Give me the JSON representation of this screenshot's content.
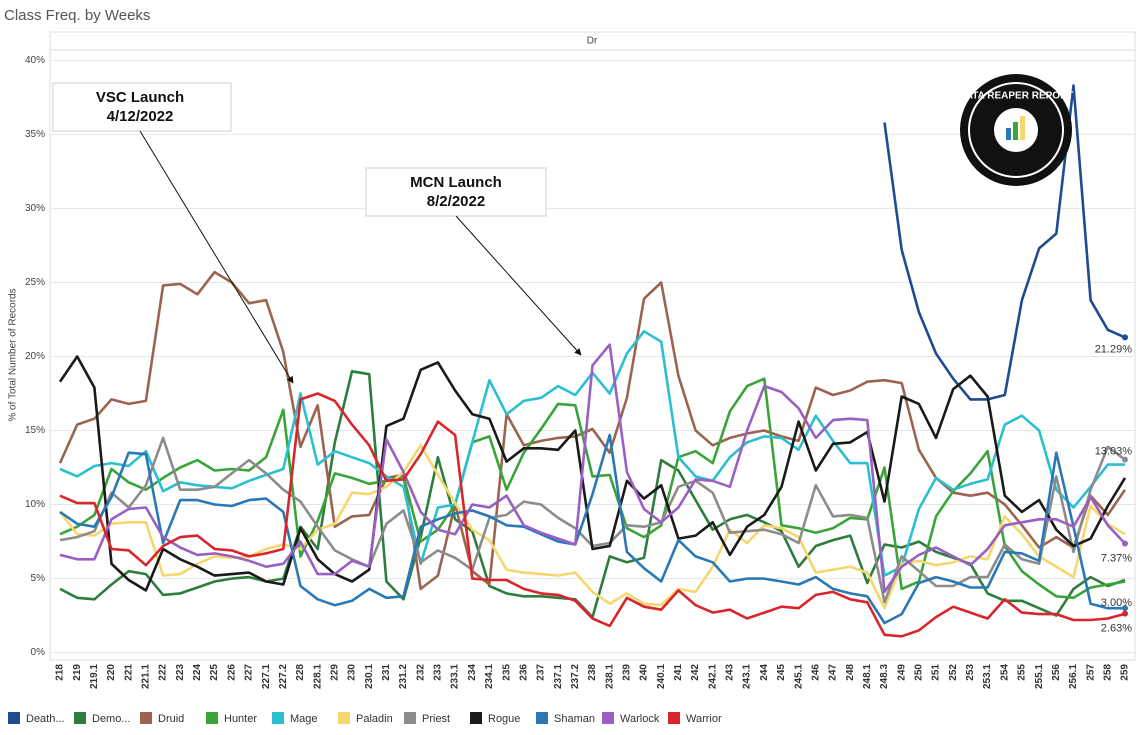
{
  "chart_data": {
    "type": "line",
    "title": "Class Freq. by Weeks",
    "panel": "Dr",
    "y_label": "% of Total Number of Records",
    "logo": "DATA REAPER REPORT",
    "annotations": [
      {
        "label": "VSC Launch",
        "date": "4/12/2022"
      },
      {
        "label": "MCN Launch",
        "date": "8/2/2022"
      }
    ],
    "grid": true,
    "ylim": [
      -0.5,
      40.7
    ],
    "yticks": [
      {
        "value": 0,
        "label": "0%"
      },
      {
        "value": 5,
        "label": "5%"
      },
      {
        "value": 10,
        "label": "10%"
      },
      {
        "value": 15,
        "label": "15%"
      },
      {
        "value": 20,
        "label": "20%"
      },
      {
        "value": 25,
        "label": "25%"
      },
      {
        "value": 30,
        "label": "30%"
      },
      {
        "value": 35,
        "label": "35%"
      },
      {
        "value": 40,
        "label": "40%"
      }
    ],
    "categories": [
      "218",
      "219",
      "219.1",
      "220",
      "221",
      "221.1",
      "222",
      "223",
      "224",
      "225",
      "226",
      "227",
      "227.1",
      "227.2",
      "228",
      "228.1",
      "229",
      "230",
      "230.1",
      "231",
      "231.2",
      "232",
      "233",
      "233.1",
      "234",
      "234.1",
      "235",
      "236",
      "237",
      "237.1",
      "237.2",
      "238",
      "238.1",
      "239",
      "240",
      "240.1",
      "241",
      "242",
      "242.1",
      "243",
      "243.1",
      "244",
      "245",
      "245.1",
      "246",
      "247",
      "248",
      "248.1",
      "248.3",
      "249",
      "250",
      "251",
      "252",
      "253",
      "253.1",
      "254",
      "255",
      "255.1",
      "256",
      "256.1",
      "257",
      "258",
      "259"
    ],
    "series": [
      {
        "name": "Death...",
        "color": "#1f4b91",
        "values": [
          null,
          null,
          null,
          null,
          null,
          null,
          null,
          null,
          null,
          null,
          null,
          null,
          null,
          null,
          null,
          null,
          null,
          null,
          null,
          null,
          null,
          null,
          null,
          null,
          null,
          null,
          null,
          null,
          null,
          null,
          null,
          null,
          null,
          null,
          null,
          null,
          null,
          null,
          null,
          null,
          null,
          null,
          null,
          null,
          null,
          null,
          null,
          null,
          35.8,
          27.2,
          23,
          20.2,
          18.5,
          17.1,
          17.1,
          17.4,
          23.8,
          27.3,
          28.3,
          38.3,
          23.8,
          21.8,
          21.29
        ],
        "value_labels": [
          null,
          null,
          null,
          null,
          null,
          null,
          null,
          null,
          null,
          null,
          null,
          null,
          null,
          null,
          null,
          null,
          null,
          null,
          null,
          null,
          null,
          null,
          null,
          null,
          null,
          null,
          null,
          null,
          null,
          null,
          null,
          null,
          null,
          null,
          null,
          null,
          null,
          null,
          null,
          null,
          null,
          null,
          null,
          null,
          null,
          null,
          null,
          null,
          null,
          null,
          null,
          null,
          null,
          null,
          null,
          null,
          null,
          null,
          null,
          null,
          null,
          null,
          "21.29%"
        ]
      },
      {
        "name": "Demo...",
        "color": "#2e7d3e",
        "values": [
          4.3,
          3.7,
          3.6,
          4.6,
          5.5,
          5.3,
          3.9,
          4.0,
          4.4,
          4.8,
          5.0,
          5.1,
          4.8,
          5.0,
          8.5,
          7.0,
          14.2,
          19.0,
          18.8,
          4.8,
          3.6,
          7.8,
          13.2,
          9.0,
          8.2,
          4.5,
          4.0,
          3.8,
          3.8,
          3.7,
          3.6,
          2.4,
          6.5,
          6.1,
          6.4,
          13.0,
          12.3,
          10.3,
          8.3,
          9.0,
          9.3,
          8.8,
          8.2,
          5.8,
          7.2,
          7.6,
          7.9,
          4.7,
          7.3,
          7.1,
          7.5,
          6.8,
          6.4,
          6.0,
          4.0,
          3.5,
          3.5,
          3.0,
          2.5,
          4.3,
          5.1,
          4.5,
          4.9
        ]
      },
      {
        "name": "Druid",
        "color": "#9c6450",
        "values": [
          12.8,
          15.4,
          15.8,
          17.1,
          16.8,
          17.0,
          24.8,
          24.9,
          24.2,
          25.7,
          25.0,
          23.6,
          23.8,
          20.3,
          13.9,
          16.7,
          8.5,
          9.2,
          9.3,
          11.8,
          12.0,
          4.3,
          5.2,
          10.0,
          5.5,
          4.6,
          16.1,
          14.0,
          14.3,
          14.5,
          14.6,
          15.1,
          13.5,
          17.2,
          23.9,
          25.0,
          18.7,
          15.0,
          14.0,
          14.5,
          14.8,
          15.0,
          14.6,
          14.3,
          17.9,
          17.4,
          17.7,
          18.3,
          18.4,
          18.2,
          13.7,
          11.8,
          10.8,
          10.6,
          10.8,
          10.0,
          8.6,
          7.1,
          7.8,
          7.1,
          10.6,
          9.3,
          11.0
        ]
      },
      {
        "name": "Hunter",
        "color": "#3aa33a",
        "values": [
          8.0,
          8.5,
          9.3,
          12.4,
          11.5,
          11.0,
          11.8,
          12.5,
          13.0,
          12.3,
          12.4,
          12.3,
          13.2,
          16.4,
          6.5,
          8.9,
          12.1,
          11.8,
          11.4,
          11.6,
          11.9,
          7.5,
          8.3,
          10.0,
          14.2,
          14.6,
          11.0,
          13.5,
          15.1,
          16.8,
          16.7,
          11.9,
          12.0,
          8.4,
          7.8,
          8.6,
          13.2,
          13.6,
          12.8,
          16.3,
          18.0,
          18.5,
          8.6,
          8.4,
          8.1,
          8.4,
          9.1,
          9.0,
          12.5,
          4.3,
          4.8,
          9.2,
          10.9,
          12.1,
          13.6,
          7.2,
          5.5,
          4.6,
          3.8,
          3.7,
          4.4,
          4.6,
          4.8
        ]
      },
      {
        "name": "Mage",
        "color": "#2bbfcf",
        "values": [
          12.4,
          11.9,
          12.6,
          12.8,
          12.6,
          13.6,
          10.9,
          11.5,
          11.3,
          11.2,
          11.1,
          11.6,
          12.0,
          12.4,
          17.5,
          12.7,
          13.6,
          13.2,
          12.8,
          11.9,
          11.2,
          6.0,
          9.8,
          10.0,
          14.2,
          18.4,
          16.1,
          17.0,
          17.2,
          18.0,
          17.4,
          18.9,
          17.5,
          20.2,
          21.7,
          21.0,
          13.2,
          11.9,
          11.6,
          13.2,
          14.2,
          14.6,
          14.5,
          13.7,
          16.0,
          14.3,
          12.8,
          12.8,
          5.2,
          5.8,
          9.7,
          11.8,
          11.0,
          11.4,
          11.7,
          15.4,
          16.0,
          15.0,
          11.0,
          9.8,
          11.2,
          12.7,
          12.7
        ]
      },
      {
        "name": "Paladin",
        "color": "#f5d76e",
        "values": [
          9.5,
          8.0,
          7.9,
          8.7,
          8.8,
          8.8,
          5.2,
          5.3,
          6.0,
          6.5,
          6.4,
          6.5,
          7.0,
          7.3,
          7.0,
          8.3,
          8.7,
          10.8,
          10.7,
          11.2,
          12.2,
          14.0,
          12.0,
          10.1,
          8.3,
          7.6,
          5.6,
          5.4,
          5.3,
          5.2,
          5.4,
          4.1,
          3.3,
          4.0,
          3.3,
          3.2,
          4.3,
          4.1,
          5.8,
          8.3,
          7.4,
          8.6,
          8.4,
          7.8,
          5.4,
          5.6,
          5.8,
          5.4,
          3.0,
          6.0,
          6.2,
          5.9,
          6.1,
          6.5,
          6.3,
          9.2,
          8.0,
          6.5,
          5.8,
          5.1,
          9.9,
          8.7,
          8.0
        ]
      },
      {
        "name": "Priest",
        "color": "#8c8c8c",
        "values": [
          7.6,
          7.8,
          8.2,
          10.8,
          9.8,
          11.3,
          14.5,
          11.0,
          11.0,
          11.2,
          12.1,
          13.0,
          12.1,
          11.0,
          10.2,
          8.5,
          6.9,
          6.3,
          5.8,
          8.7,
          9.6,
          6.1,
          6.9,
          6.4,
          5.6,
          9.1,
          9.3,
          10.2,
          10.0,
          9.1,
          8.4,
          7.2,
          7.4,
          8.6,
          8.5,
          8.8,
          11.2,
          11.6,
          10.8,
          8.1,
          8.2,
          8.3,
          8.0,
          7.4,
          11.3,
          9.2,
          9.3,
          9.1,
          3.4,
          6.5,
          5.5,
          4.5,
          4.5,
          5.1,
          5.1,
          7.3,
          6.3,
          6.0,
          11.9,
          6.8,
          11.0,
          13.9,
          13.03
        ],
        "value_labels": [
          null,
          null,
          null,
          null,
          null,
          null,
          null,
          null,
          null,
          null,
          null,
          null,
          null,
          null,
          null,
          null,
          null,
          null,
          null,
          null,
          null,
          null,
          null,
          null,
          null,
          null,
          null,
          null,
          null,
          null,
          null,
          null,
          null,
          null,
          null,
          null,
          null,
          null,
          null,
          null,
          null,
          null,
          null,
          null,
          null,
          null,
          null,
          null,
          null,
          null,
          null,
          null,
          null,
          null,
          null,
          null,
          null,
          null,
          null,
          null,
          null,
          null,
          "13.03%"
        ]
      },
      {
        "name": "Rogue",
        "color": "#1a1a1a",
        "values": [
          18.3,
          20.0,
          17.9,
          6.0,
          4.9,
          4.2,
          7.0,
          6.3,
          5.8,
          5.2,
          5.3,
          5.4,
          4.8,
          4.6,
          8.4,
          6.3,
          5.3,
          4.8,
          5.6,
          15.3,
          15.8,
          19.1,
          19.6,
          17.7,
          16.1,
          15.8,
          12.9,
          13.8,
          13.8,
          13.7,
          15.0,
          7.0,
          7.2,
          11.6,
          10.4,
          11.3,
          7.7,
          7.9,
          8.8,
          6.6,
          8.5,
          9.3,
          11.2,
          15.6,
          12.3,
          14.1,
          14.2,
          14.9,
          10.2,
          17.3,
          16.8,
          14.5,
          17.8,
          18.7,
          17.3,
          10.6,
          9.5,
          10.3,
          8.3,
          7.2,
          7.7,
          9.9,
          11.8
        ]
      },
      {
        "name": "Shaman",
        "color": "#2a78b5",
        "values": [
          9.5,
          8.7,
          8.5,
          10.5,
          13.5,
          13.4,
          7.4,
          10.3,
          10.3,
          10.0,
          9.9,
          10.3,
          10.4,
          9.5,
          4.5,
          3.6,
          3.2,
          3.5,
          4.3,
          3.7,
          3.8,
          8.5,
          9.0,
          9.4,
          9.6,
          9.2,
          8.6,
          8.5,
          8.0,
          7.5,
          7.3,
          10.7,
          14.7,
          6.8,
          5.7,
          4.8,
          7.6,
          6.5,
          6.1,
          4.8,
          5.0,
          5.0,
          4.8,
          4.6,
          5.1,
          4.3,
          4.0,
          3.8,
          2.0,
          2.6,
          4.7,
          5.1,
          4.8,
          4.4,
          4.4,
          6.8,
          6.7,
          6.2,
          13.5,
          8.5,
          3.3,
          3.0,
          3.0
        ],
        "value_labels": [
          null,
          null,
          null,
          null,
          null,
          null,
          null,
          null,
          null,
          null,
          null,
          null,
          null,
          null,
          null,
          null,
          null,
          null,
          null,
          null,
          null,
          null,
          null,
          null,
          null,
          null,
          null,
          null,
          null,
          null,
          null,
          null,
          null,
          null,
          null,
          null,
          null,
          null,
          null,
          null,
          null,
          null,
          null,
          null,
          null,
          null,
          null,
          null,
          null,
          null,
          null,
          null,
          null,
          null,
          null,
          null,
          null,
          null,
          null,
          null,
          null,
          null,
          "3.00%"
        ]
      },
      {
        "name": "Warlock",
        "color": "#9a5fc2",
        "values": [
          6.6,
          6.3,
          6.3,
          9.0,
          9.7,
          9.8,
          7.8,
          7.1,
          6.6,
          6.7,
          6.5,
          6.2,
          5.8,
          6.0,
          7.5,
          5.3,
          5.3,
          6.2,
          5.8,
          14.4,
          12.2,
          9.5,
          8.3,
          8.0,
          10.0,
          9.8,
          10.6,
          8.6,
          8.1,
          7.7,
          7.3,
          19.4,
          20.8,
          12.2,
          9.7,
          8.8,
          9.8,
          11.7,
          11.6,
          11.2,
          15.0,
          18.0,
          17.6,
          16.5,
          14.5,
          15.7,
          15.8,
          15.7,
          4.1,
          5.8,
          6.6,
          7.1,
          6.5,
          5.9,
          7.0,
          8.6,
          8.8,
          9.0,
          9.0,
          8.5,
          10.5,
          8.6,
          7.37
        ],
        "value_labels": [
          null,
          null,
          null,
          null,
          null,
          null,
          null,
          null,
          null,
          null,
          null,
          null,
          null,
          null,
          null,
          null,
          null,
          null,
          null,
          null,
          null,
          null,
          null,
          null,
          null,
          null,
          null,
          null,
          null,
          null,
          null,
          null,
          null,
          null,
          null,
          null,
          null,
          null,
          null,
          null,
          null,
          null,
          null,
          null,
          null,
          null,
          null,
          null,
          null,
          null,
          null,
          null,
          null,
          null,
          null,
          null,
          null,
          null,
          null,
          null,
          null,
          null,
          "7.37%"
        ]
      },
      {
        "name": "Warrior",
        "color": "#d8262c",
        "values": [
          10.6,
          10.1,
          10.1,
          7.0,
          6.9,
          5.9,
          7.2,
          7.8,
          7.9,
          7.0,
          6.9,
          6.5,
          6.7,
          7.0,
          17.1,
          17.5,
          17.0,
          15.4,
          14.0,
          11.6,
          11.7,
          13.4,
          15.6,
          14.7,
          5.0,
          4.9,
          4.9,
          4.3,
          4.0,
          3.9,
          3.5,
          2.3,
          1.8,
          3.7,
          3.1,
          2.9,
          4.2,
          3.2,
          2.7,
          2.9,
          2.3,
          2.7,
          3.1,
          3.0,
          3.9,
          4.1,
          3.6,
          3.4,
          1.2,
          1.1,
          1.5,
          2.4,
          3.1,
          2.7,
          2.3,
          3.6,
          2.7,
          2.6,
          2.6,
          2.2,
          2.2,
          2.3,
          2.63
        ],
        "value_labels": [
          null,
          null,
          null,
          null,
          null,
          null,
          null,
          null,
          null,
          null,
          null,
          null,
          null,
          null,
          null,
          null,
          null,
          null,
          null,
          null,
          null,
          null,
          null,
          null,
          null,
          null,
          null,
          null,
          null,
          null,
          null,
          null,
          null,
          null,
          null,
          null,
          null,
          null,
          null,
          null,
          null,
          null,
          null,
          null,
          null,
          null,
          null,
          null,
          null,
          null,
          null,
          null,
          null,
          null,
          null,
          null,
          null,
          null,
          null,
          null,
          null,
          null,
          "2.63%"
        ]
      }
    ]
  }
}
